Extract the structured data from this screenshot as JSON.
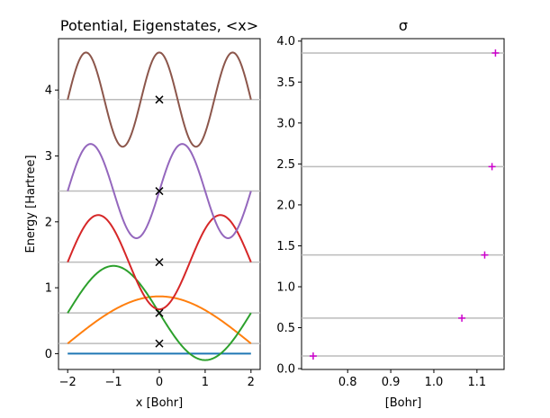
{
  "chart_data": [
    {
      "type": "line",
      "title": "Potential, Eigenstates, <x>",
      "xlabel": "x [Bohr]",
      "ylabel": "Energy [Hartree]",
      "xlim": [
        -2.2,
        2.2
      ],
      "ylim": [
        -0.24,
        4.78
      ],
      "xticks": [
        -2,
        -1,
        0,
        1,
        2
      ],
      "yticks": [
        0,
        1,
        2,
        3,
        4
      ],
      "grid": false,
      "potential": {
        "x": [
          -2,
          2
        ],
        "y": [
          0,
          0
        ],
        "color": "#1f77b4"
      },
      "energy_levels": [
        0.154,
        0.617,
        1.388,
        2.467,
        3.855
      ],
      "level_color": "#bbbbbb",
      "series": [
        {
          "color": "#ff7f0e",
          "energy": 0.154,
          "n": 1,
          "amplitude": 0.715
        },
        {
          "color": "#2ca02c",
          "energy": 0.617,
          "n": 2,
          "amplitude": 0.715
        },
        {
          "color": "#d62728",
          "energy": 1.388,
          "n": 3,
          "amplitude": 0.715
        },
        {
          "color": "#9467bd",
          "energy": 2.467,
          "n": 4,
          "amplitude": 0.715
        },
        {
          "color": "#8c564b",
          "energy": 3.855,
          "n": 5,
          "amplitude": 0.715
        }
      ],
      "expectation_markers": {
        "marker": "x",
        "color": "#000000",
        "points": [
          {
            "x": 0,
            "y": 0.154
          },
          {
            "x": 0,
            "y": 0.617
          },
          {
            "x": 0,
            "y": 1.388
          },
          {
            "x": 0,
            "y": 2.467
          },
          {
            "x": 0,
            "y": 3.855
          }
        ]
      }
    },
    {
      "type": "scatter",
      "title": "σ",
      "xlabel": "[Bohr]",
      "ylabel": "",
      "xlim": [
        0.693,
        1.163
      ],
      "ylim": [
        -0.01,
        4.03
      ],
      "xticks": [
        0.8,
        0.9,
        1.0,
        1.1
      ],
      "xtick_labels": [
        "0.8",
        "0.9",
        "1.0",
        "1.1"
      ],
      "yticks": [
        0.0,
        0.5,
        1.0,
        1.5,
        2.0,
        2.5,
        3.0,
        3.5,
        4.0
      ],
      "ytick_labels": [
        "0.0",
        "0.5",
        "1.0",
        "1.5",
        "2.0",
        "2.5",
        "3.0",
        "3.5",
        "4.0"
      ],
      "grid": false,
      "energy_levels": [
        0.154,
        0.617,
        1.388,
        2.467,
        3.855
      ],
      "level_color": "#bbbbbb",
      "marker": "+",
      "marker_color": "#cc00cc",
      "points": [
        {
          "x": 0.72,
          "y": 0.154
        },
        {
          "x": 1.065,
          "y": 0.617
        },
        {
          "x": 1.118,
          "y": 1.388
        },
        {
          "x": 1.135,
          "y": 2.467
        },
        {
          "x": 1.143,
          "y": 3.855
        }
      ]
    }
  ]
}
